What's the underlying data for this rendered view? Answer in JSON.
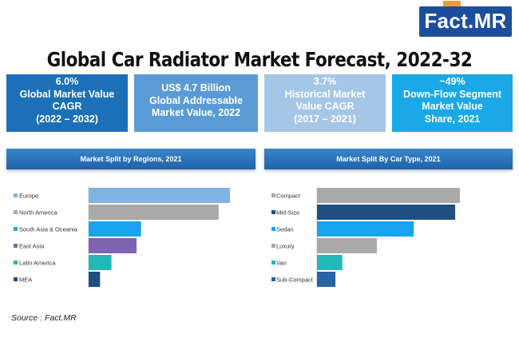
{
  "logo": {
    "main": "Fact",
    "dot": ".",
    "suffix": "MR"
  },
  "title": "Global Car Radiator Market Forecast, 2022-32",
  "kpis": [
    {
      "lines": [
        "6.0%",
        "Global Market Value",
        "CAGR",
        "(2022 – 2032)"
      ],
      "color": "#1c70b8"
    },
    {
      "lines": [
        "US$ 4.7 Billion",
        "Global Addressable",
        "Market Value, 2022"
      ],
      "color": "#5a9bd6"
    },
    {
      "lines": [
        "3.7%",
        "Historical Market",
        "Value CAGR",
        "(2017 – 2021)"
      ],
      "color": "#a6c6e8"
    },
    {
      "lines": [
        "~49%",
        "Down-Flow Segment",
        "Market Value",
        "Share, 2021"
      ],
      "color": "#1aa8e8"
    }
  ],
  "chart_data": [
    {
      "type": "bar",
      "orientation": "horizontal",
      "title": "Market Split by Regions, 2021",
      "categories": [
        "Europe",
        "North America",
        "South Asia & Oceania",
        "East Asia",
        "Latin America",
        "MEA"
      ],
      "values": [
        31,
        28.5,
        11.5,
        10.5,
        5,
        2.5
      ],
      "colors": [
        "#80b2e2",
        "#a9a9a9",
        "#1aa3f0",
        "#7d63b0",
        "#22b8b8",
        "#1e4f80"
      ],
      "xlim": [
        0,
        35
      ]
    },
    {
      "type": "bar",
      "orientation": "horizontal",
      "title": "Market Split By Car Type, 2021",
      "categories": [
        "Compact",
        "Mid-Size",
        "Sedan",
        "Luxury",
        "Van",
        "Sub-Compact"
      ],
      "values": [
        31,
        30,
        21,
        13,
        5.5,
        4
      ],
      "colors": [
        "#a9a9a9",
        "#1e4f80",
        "#1aa3f0",
        "#a9a9a9",
        "#22b8b8",
        "#2a63a5"
      ],
      "xlim": [
        0,
        35
      ]
    }
  ],
  "source": "Source : Fact.MR"
}
